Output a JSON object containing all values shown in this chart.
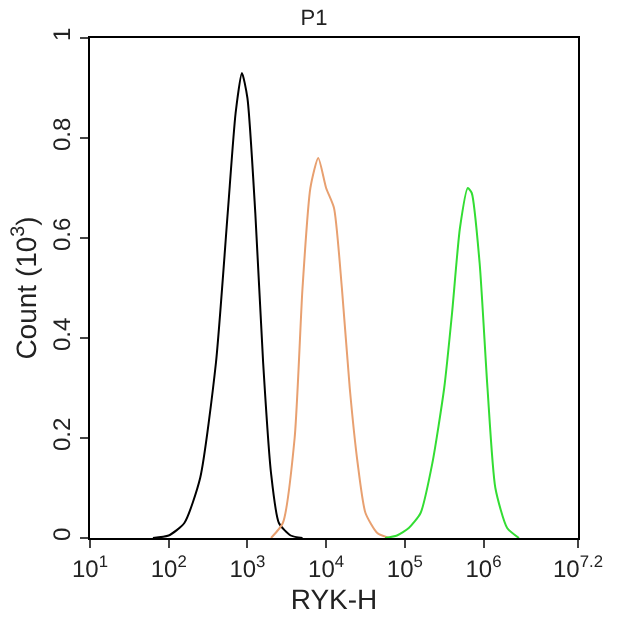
{
  "chart_data": {
    "type": "line",
    "title": "P1",
    "xlabel": "RYK-H",
    "ylabel": "Count (10$^{3}$)",
    "log": "x",
    "marker": "none",
    "line_style": "solid",
    "xlim": [
      10,
      15848932
    ],
    "xticks": [
      {
        "value": 10,
        "label": "10$^{1}$"
      },
      {
        "value": 100,
        "label": "10$^{2}$"
      },
      {
        "value": 1000,
        "label": "10$^{3}$"
      },
      {
        "value": 10000,
        "label": "10$^{4}$"
      },
      {
        "value": 100000,
        "label": "10$^{5}$"
      },
      {
        "value": 1000000,
        "label": "10$^{6}$"
      },
      {
        "value": 15848932,
        "label": "10$^{7.2}$"
      }
    ],
    "ylim": [
      0,
      1
    ],
    "yticks": [
      0,
      0.2,
      0.4,
      0.6,
      0.8,
      1
    ],
    "series": [
      {
        "color": "#000000",
        "x": [
          63,
          100,
          158,
          251,
          398,
          562,
          708,
          851,
          1000,
          1259,
          1585,
          1995,
          2512,
          3548,
          5012
        ],
        "values": [
          0,
          0.005,
          0.03,
          0.12,
          0.35,
          0.65,
          0.85,
          0.93,
          0.88,
          0.65,
          0.35,
          0.13,
          0.03,
          0.005,
          0
        ]
      },
      {
        "color": "#e8a070",
        "x": [
          1995,
          2818,
          3981,
          5012,
          6310,
          7943,
          10000,
          12589,
          15849,
          19953,
          25119,
          31623,
          44668,
          63096
        ],
        "values": [
          0,
          0.03,
          0.2,
          0.5,
          0.7,
          0.76,
          0.7,
          0.66,
          0.5,
          0.3,
          0.15,
          0.05,
          0.01,
          0
        ]
      },
      {
        "color": "#33dd33",
        "x": [
          56234,
          79433,
          112202,
          158489,
          223872,
          316228,
          398107,
          501187,
          630957,
          707946,
          891251,
          1122018,
          1412538,
          1995262,
          2818383
        ],
        "values": [
          0,
          0.005,
          0.02,
          0.05,
          0.15,
          0.3,
          0.45,
          0.62,
          0.7,
          0.69,
          0.55,
          0.3,
          0.1,
          0.02,
          0
        ]
      }
    ]
  }
}
